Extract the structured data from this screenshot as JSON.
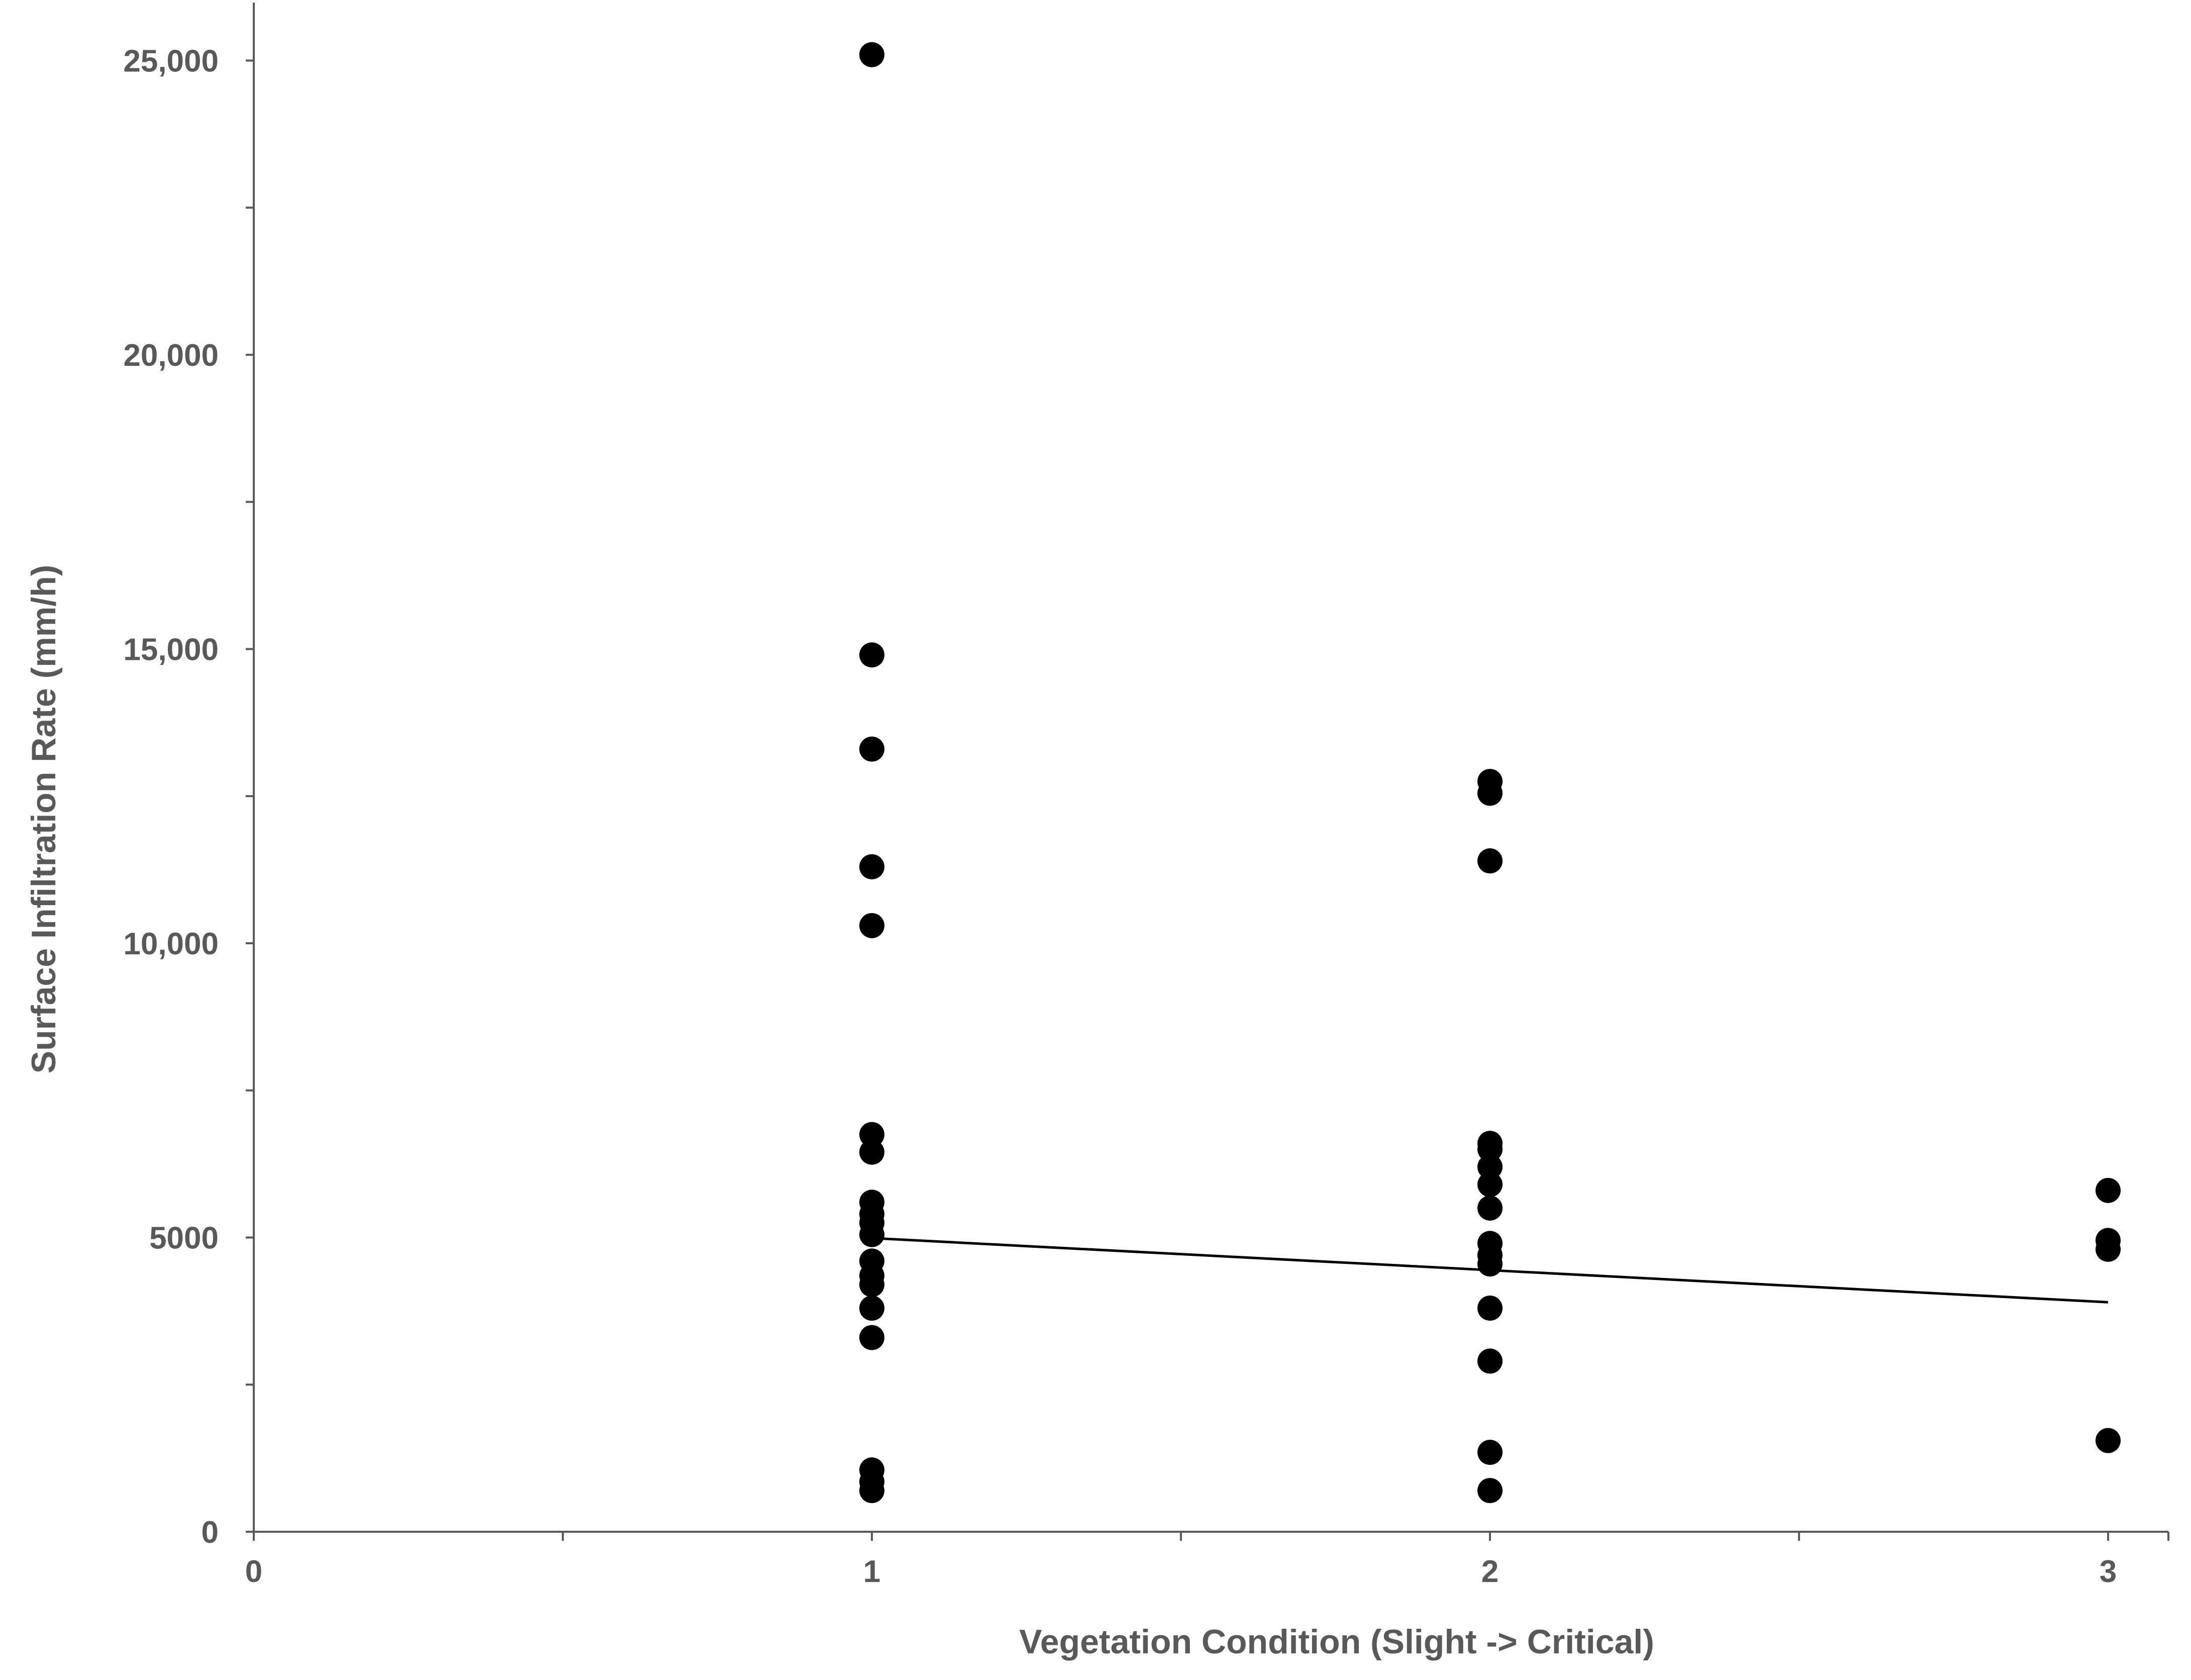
{
  "chart_data": {
    "type": "scatter",
    "title": "",
    "xlabel": "Vegetation Condition (Slight -> Critical)",
    "ylabel": "Surface Infiltration Rate (mm/h)",
    "xlim": [
      0,
      3.1
    ],
    "ylim": [
      0,
      26000
    ],
    "x_ticks": [
      {
        "value": 0,
        "label": "0"
      },
      {
        "value": 1,
        "label": "1"
      },
      {
        "value": 2,
        "label": "2"
      },
      {
        "value": 3,
        "label": "3"
      }
    ],
    "x_minor_ticks": [
      0.5,
      1.5,
      2.5
    ],
    "y_ticks": [
      {
        "value": 0,
        "label": "0"
      },
      {
        "value": 5000,
        "label": "5000"
      },
      {
        "value": 10000,
        "label": "10,000"
      },
      {
        "value": 15000,
        "label": "15,000"
      },
      {
        "value": 20000,
        "label": "20,000"
      },
      {
        "value": 25000,
        "label": "25,000"
      }
    ],
    "y_minor_ticks": [
      2500,
      7500,
      12500,
      17500,
      22500
    ],
    "grid": false,
    "legend": "none",
    "marker_color": "#000000",
    "series": [
      {
        "points": [
          [
            1,
            25100
          ],
          [
            1,
            14900
          ],
          [
            1,
            13300
          ],
          [
            1,
            11300
          ],
          [
            1,
            10300
          ],
          [
            1,
            6750
          ],
          [
            1,
            6450
          ],
          [
            1,
            5600
          ],
          [
            1,
            5400
          ],
          [
            1,
            5250
          ],
          [
            1,
            5050
          ],
          [
            1,
            4600
          ],
          [
            1,
            4350
          ],
          [
            1,
            4200
          ],
          [
            1,
            3800
          ],
          [
            1,
            3300
          ],
          [
            1,
            1050
          ],
          [
            1,
            850
          ],
          [
            1,
            700
          ],
          [
            2,
            12750
          ],
          [
            2,
            12550
          ],
          [
            2,
            11400
          ],
          [
            2,
            6600
          ],
          [
            2,
            6500
          ],
          [
            2,
            6200
          ],
          [
            2,
            5900
          ],
          [
            2,
            5500
          ],
          [
            2,
            4900
          ],
          [
            2,
            4700
          ],
          [
            2,
            4550
          ],
          [
            2,
            3800
          ],
          [
            2,
            2900
          ],
          [
            2,
            1350
          ],
          [
            2,
            700
          ],
          [
            3,
            5800
          ],
          [
            3,
            4950
          ],
          [
            3,
            4800
          ],
          [
            3,
            1550
          ]
        ]
      }
    ],
    "trendline": {
      "type": "linear",
      "x_range": [
        1,
        3
      ],
      "y_values": [
        4990,
        3900
      ],
      "color": "#000000"
    }
  }
}
